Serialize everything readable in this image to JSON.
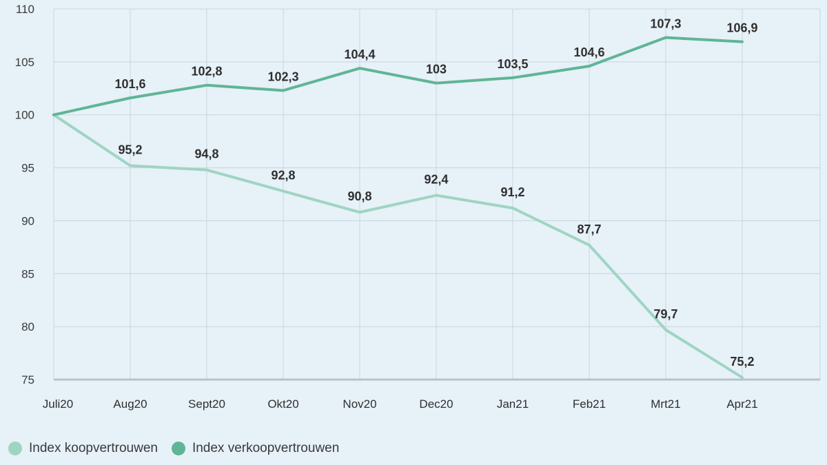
{
  "chart_data": {
    "type": "line",
    "categories": [
      "Juli20",
      "Aug20",
      "Sept20",
      "Okt20",
      "Nov20",
      "Dec20",
      "Jan21",
      "Feb21",
      "Mrt21",
      "Apr21"
    ],
    "ylim": [
      75,
      110
    ],
    "yticks": [
      75,
      80,
      85,
      90,
      95,
      100,
      105,
      110
    ],
    "grid": true,
    "legend_position": "bottom-left",
    "series": [
      {
        "name": "Index koopvertrouwen",
        "color": "#9fd4c3",
        "values": [
          100,
          95.2,
          94.8,
          92.8,
          90.8,
          92.4,
          91.2,
          87.7,
          79.7,
          75.2
        ],
        "labels": [
          "",
          "95,2",
          "94,8",
          "92,8",
          "90,8",
          "92,4",
          "91,2",
          "87,7",
          "79,7",
          "75,2"
        ]
      },
      {
        "name": "Index verkoopvertrouwen",
        "color": "#5fb595",
        "values": [
          100,
          101.6,
          102.8,
          102.3,
          104.4,
          103,
          103.5,
          104.6,
          107.3,
          106.9
        ],
        "labels": [
          "",
          "101,6",
          "102,8",
          "102,3",
          "104,4",
          "103",
          "103,5",
          "104,6",
          "107,3",
          "106,9"
        ]
      }
    ]
  },
  "legend": {
    "items": [
      {
        "label": "Index koopvertrouwen",
        "color": "#9fd4c3"
      },
      {
        "label": "Index verkoopvertrouwen",
        "color": "#5fb595"
      }
    ]
  }
}
